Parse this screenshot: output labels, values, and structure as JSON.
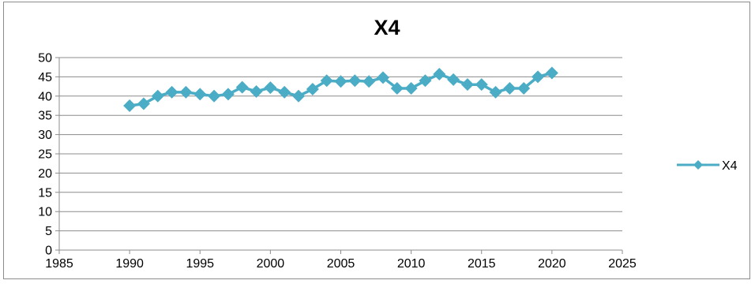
{
  "chart_data": {
    "type": "line",
    "title": "X4",
    "xlabel": "",
    "ylabel": "",
    "xlim": [
      1985,
      2025
    ],
    "ylim": [
      0,
      50
    ],
    "xticks": [
      1985,
      1990,
      1995,
      2000,
      2005,
      2010,
      2015,
      2020,
      2025
    ],
    "yticks": [
      0,
      5,
      10,
      15,
      20,
      25,
      30,
      35,
      40,
      45,
      50
    ],
    "grid": "horizontal",
    "legend_position": "right",
    "series": [
      {
        "name": "X4",
        "color": "#4bacc6",
        "marker": "diamond",
        "x": [
          1990,
          1991,
          1992,
          1993,
          1994,
          1995,
          1996,
          1997,
          1998,
          1999,
          2000,
          2001,
          2002,
          2003,
          2004,
          2005,
          2006,
          2007,
          2008,
          2009,
          2010,
          2011,
          2012,
          2013,
          2014,
          2015,
          2016,
          2017,
          2018,
          2019,
          2020
        ],
        "y": [
          37.5,
          38,
          40,
          41,
          41,
          40.5,
          40,
          40.5,
          42.3,
          41.2,
          42.2,
          41,
          40,
          41.8,
          44,
          43.8,
          44,
          43.8,
          44.8,
          42,
          42,
          44,
          45.7,
          44.3,
          43,
          43,
          41,
          42,
          42,
          45,
          46
        ]
      }
    ]
  }
}
